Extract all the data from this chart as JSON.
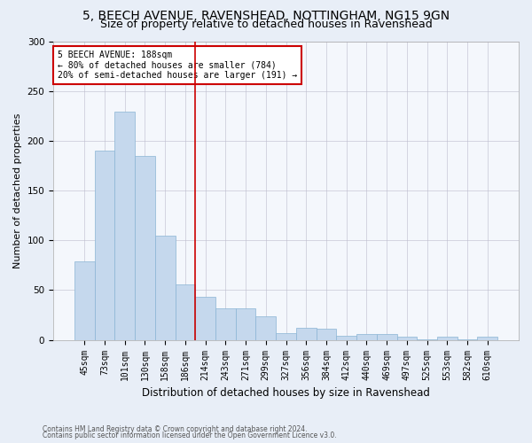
{
  "title1": "5, BEECH AVENUE, RAVENSHEAD, NOTTINGHAM, NG15 9GN",
  "title2": "Size of property relative to detached houses in Ravenshead",
  "xlabel": "Distribution of detached houses by size in Ravenshead",
  "ylabel": "Number of detached properties",
  "categories": [
    "45sqm",
    "73sqm",
    "101sqm",
    "130sqm",
    "158sqm",
    "186sqm",
    "214sqm",
    "243sqm",
    "271sqm",
    "299sqm",
    "327sqm",
    "356sqm",
    "384sqm",
    "412sqm",
    "440sqm",
    "469sqm",
    "497sqm",
    "525sqm",
    "553sqm",
    "582sqm",
    "610sqm"
  ],
  "values": [
    79,
    190,
    229,
    185,
    105,
    56,
    43,
    32,
    32,
    24,
    7,
    12,
    11,
    4,
    6,
    6,
    3,
    1,
    3,
    1,
    3
  ],
  "bar_color": "#c5d8ed",
  "bar_edge_color": "#8ab4d4",
  "vline_x": 5.5,
  "vline_color": "#cc0000",
  "annotation_text": "5 BEECH AVENUE: 188sqm\n← 80% of detached houses are smaller (784)\n20% of semi-detached houses are larger (191) →",
  "annotation_box_color": "#ffffff",
  "annotation_box_edge": "#cc0000",
  "ylim": [
    0,
    300
  ],
  "yticks": [
    0,
    50,
    100,
    150,
    200,
    250,
    300
  ],
  "footer1": "Contains HM Land Registry data © Crown copyright and database right 2024.",
  "footer2": "Contains public sector information licensed under the Open Government Licence v3.0.",
  "bg_color": "#e8eef7",
  "plot_bg_color": "#f4f7fc",
  "title1_fontsize": 10,
  "title2_fontsize": 9,
  "xlabel_fontsize": 8.5,
  "ylabel_fontsize": 8,
  "tick_fontsize": 7,
  "footer_fontsize": 5.5
}
